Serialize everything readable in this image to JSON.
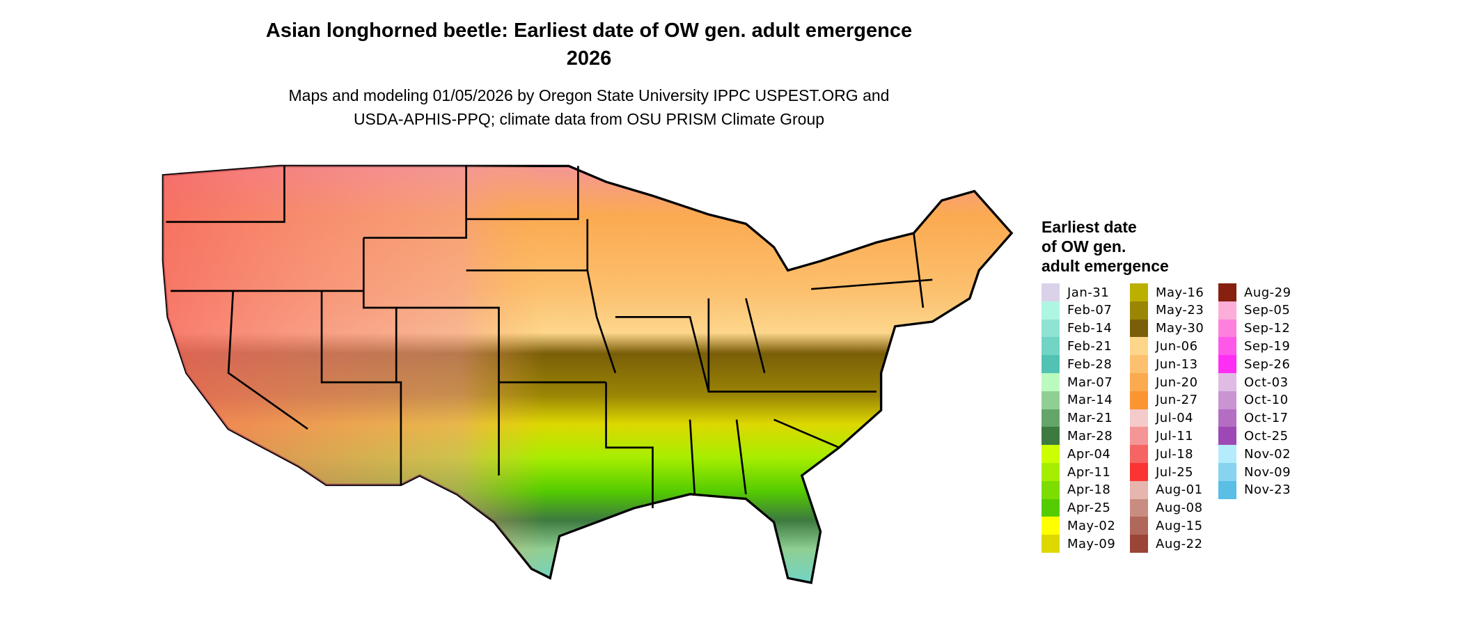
{
  "title_line1": "Asian longhorned beetle: Earliest date of OW gen. adult emergence",
  "title_line2": "2026",
  "subtitle_line1": "Maps and modeling 01/05/2026 by Oregon State University IPPC USPEST.ORG and",
  "subtitle_line2": "USDA-APHIS-PPQ; climate data from OSU PRISM Climate Group",
  "legend": {
    "title_lines": [
      "Earliest date",
      "of OW gen.",
      "adult emergence"
    ],
    "items": [
      {
        "label": "Jan-31",
        "color": "#D9D2E9"
      },
      {
        "label": "Feb-07",
        "color": "#AFF5E3"
      },
      {
        "label": "Feb-14",
        "color": "#8EE3D3"
      },
      {
        "label": "Feb-21",
        "color": "#72D4C4"
      },
      {
        "label": "Feb-28",
        "color": "#52C2B4"
      },
      {
        "label": "Mar-07",
        "color": "#BBFABF"
      },
      {
        "label": "Mar-14",
        "color": "#8FCF94"
      },
      {
        "label": "Mar-21",
        "color": "#64A56A"
      },
      {
        "label": "Mar-28",
        "color": "#3D7A3F"
      },
      {
        "label": "Apr-04",
        "color": "#CCFF00"
      },
      {
        "label": "Apr-11",
        "color": "#A6EE00"
      },
      {
        "label": "Apr-18",
        "color": "#7EDD00"
      },
      {
        "label": "Apr-25",
        "color": "#55CC00"
      },
      {
        "label": "May-02",
        "color": "#FFFF00"
      },
      {
        "label": "May-09",
        "color": "#DDD800"
      },
      {
        "label": "May-16",
        "color": "#BBB000"
      },
      {
        "label": "May-23",
        "color": "#9A8505"
      },
      {
        "label": "May-30",
        "color": "#7A5E08"
      },
      {
        "label": "Jun-06",
        "color": "#FDD68C"
      },
      {
        "label": "Jun-13",
        "color": "#FCC06E"
      },
      {
        "label": "Jun-20",
        "color": "#FBAA50"
      },
      {
        "label": "Jun-27",
        "color": "#FA9532"
      },
      {
        "label": "Jul-04",
        "color": "#F4CACA"
      },
      {
        "label": "Jul-11",
        "color": "#F49696"
      },
      {
        "label": "Jul-18",
        "color": "#F66464"
      },
      {
        "label": "Jul-25",
        "color": "#FB3333"
      },
      {
        "label": "Aug-01",
        "color": "#E5B5AE"
      },
      {
        "label": "Aug-08",
        "color": "#C98C80"
      },
      {
        "label": "Aug-15",
        "color": "#B0685A"
      },
      {
        "label": "Aug-22",
        "color": "#9A4535"
      },
      {
        "label": "Aug-29",
        "color": "#86200F"
      },
      {
        "label": "Sep-05",
        "color": "#FCAED9"
      },
      {
        "label": "Sep-12",
        "color": "#FD80DC"
      },
      {
        "label": "Sep-19",
        "color": "#FE58E8"
      },
      {
        "label": "Sep-26",
        "color": "#FF2EF4"
      },
      {
        "label": "Oct-03",
        "color": "#E0BCE4"
      },
      {
        "label": "Oct-10",
        "color": "#C894D2"
      },
      {
        "label": "Oct-17",
        "color": "#B36EC4"
      },
      {
        "label": "Oct-25",
        "color": "#9E48B6"
      },
      {
        "label": "Nov-02",
        "color": "#B4ECFC"
      },
      {
        "label": "Nov-09",
        "color": "#88D4F0"
      },
      {
        "label": "Nov-23",
        "color": "#5ABEE5"
      }
    ]
  }
}
